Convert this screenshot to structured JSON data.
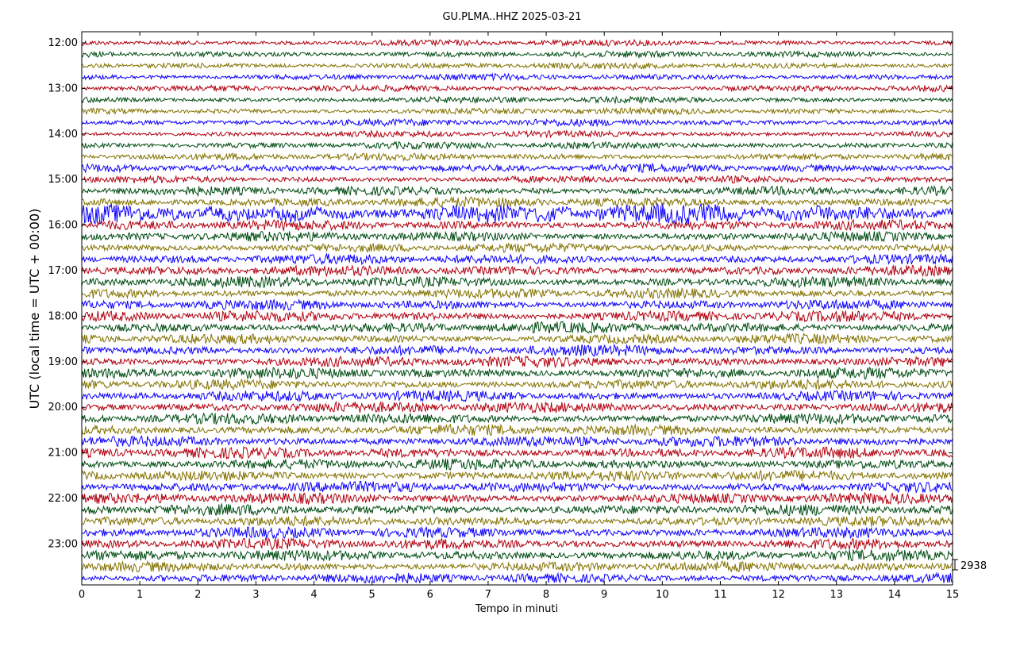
{
  "chart_data": {
    "type": "line",
    "title": "GU.PLMA..HHZ 2025-03-21",
    "xlabel": "Tempo in minuti",
    "ylabel": "UTC (local time = UTC + 00:00)",
    "xlim": [
      0,
      15
    ],
    "x_ticks": [
      "0",
      "1",
      "2",
      "3",
      "4",
      "5",
      "6",
      "7",
      "8",
      "9",
      "10",
      "11",
      "12",
      "13",
      "14",
      "15"
    ],
    "y_ticks": [
      "12:00",
      "13:00",
      "14:00",
      "15:00",
      "16:00",
      "17:00",
      "18:00",
      "19:00",
      "20:00",
      "21:00",
      "22:00",
      "23:00"
    ],
    "trace_interval_minutes": 15,
    "trace_start": "12:00",
    "trace_count": 48,
    "trace_colors": [
      "#b2000f",
      "#004c12",
      "#847200",
      "#0e01ff"
    ],
    "trace_amplitude_profile": [
      0.35,
      0.35,
      0.35,
      0.35,
      0.35,
      0.35,
      0.35,
      0.4,
      0.35,
      0.4,
      0.4,
      0.45,
      0.4,
      0.5,
      0.55,
      1.0,
      0.55,
      0.55,
      0.5,
      0.55,
      0.55,
      0.6,
      0.55,
      0.55,
      0.6,
      0.6,
      0.55,
      0.6,
      0.6,
      0.6,
      0.55,
      0.6,
      0.6,
      0.6,
      0.6,
      0.6,
      0.6,
      0.6,
      0.6,
      0.6,
      0.6,
      0.6,
      0.55,
      0.6,
      0.6,
      0.6,
      0.55,
      0.55
    ],
    "scale_label": "2938",
    "grid": false
  }
}
